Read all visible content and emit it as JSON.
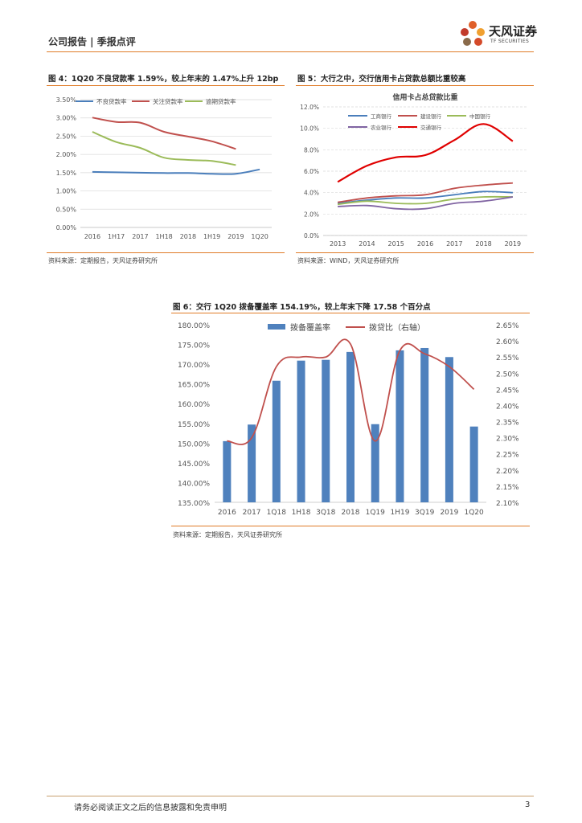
{
  "header": {
    "title": "公司报告 | 季报点评"
  },
  "logo": {
    "cn": "天风证券",
    "en": "TF SECURITIES"
  },
  "figures": {
    "fig4": {
      "title": "图 4：1Q20 不良贷款率 1.59%，较上年末的 1.47%上升 12bp",
      "source": "资料来源：定期报告，天风证券研究所"
    },
    "fig5": {
      "title": "图 5：大行之中，交行信用卡占贷款总额比重较高",
      "source": "资料来源：WIND，天风证券研究所"
    },
    "fig6": {
      "title": "图 6：交行 1Q20 拨备覆盖率 154.19%，较上年末下降 17.58 个百分点",
      "source": "资料来源：定期报告，天风证券研究所"
    }
  },
  "chart_data": [
    {
      "type": "line",
      "categories": [
        "2016",
        "1H17",
        "2017",
        "1H18",
        "2018",
        "1H19",
        "2019",
        "1Q20"
      ],
      "series": [
        {
          "name": "不良贷款率",
          "color": "#4a7ebb",
          "values": [
            1.52,
            1.51,
            1.5,
            1.49,
            1.49,
            1.47,
            1.47,
            1.59
          ]
        },
        {
          "name": "关注贷款率",
          "color": "#c0504d",
          "values": [
            3.01,
            2.89,
            2.87,
            2.62,
            2.49,
            2.36,
            2.15,
            null
          ]
        },
        {
          "name": "逾期贷款率",
          "color": "#9bbb59",
          "values": [
            2.62,
            2.34,
            2.18,
            1.91,
            1.85,
            1.82,
            1.71,
            null
          ]
        }
      ],
      "yticks": [
        "3.50%",
        "3.00%",
        "2.50%",
        "2.00%",
        "1.50%",
        "1.00%",
        "0.50%",
        "0.00%"
      ],
      "ylim": [
        0,
        3.5
      ],
      "legend": "top"
    },
    {
      "type": "line",
      "title": "信用卡占总贷款比重",
      "categories": [
        "2013",
        "2014",
        "2015",
        "2016",
        "2017",
        "2018",
        "2019"
      ],
      "series": [
        {
          "name": "工商银行",
          "color": "#4a7ebb",
          "values": [
            3.0,
            3.3,
            3.5,
            3.5,
            3.8,
            4.1,
            4.0
          ]
        },
        {
          "name": "建设银行",
          "color": "#c0504d",
          "values": [
            3.1,
            3.5,
            3.7,
            3.8,
            4.4,
            4.7,
            4.9
          ]
        },
        {
          "name": "中国银行",
          "color": "#9bbb59",
          "values": [
            2.9,
            3.2,
            3.0,
            3.0,
            3.4,
            3.6,
            3.6
          ]
        },
        {
          "name": "农业银行",
          "color": "#8064a2",
          "values": [
            2.7,
            2.8,
            2.5,
            2.5,
            3.0,
            3.2,
            3.6
          ]
        },
        {
          "name": "交通银行",
          "color": "#e00000",
          "values": [
            5.0,
            6.5,
            7.3,
            7.5,
            8.9,
            10.4,
            8.8
          ]
        }
      ],
      "yticks": [
        "12.0%",
        "10.0%",
        "8.0%",
        "6.0%",
        "4.0%",
        "2.0%",
        "0.0%"
      ],
      "ylim": [
        0,
        12
      ],
      "legend": "top"
    },
    {
      "type": "bar",
      "categories": [
        "2016",
        "2017",
        "1Q18",
        "1H18",
        "3Q18",
        "2018",
        "1Q19",
        "1H19",
        "3Q19",
        "2019",
        "1Q20"
      ],
      "series": [
        {
          "name": "拨备覆盖率",
          "color": "#4f81bd",
          "axis": "left",
          "values": [
            150.5,
            154.7,
            165.8,
            170.9,
            171.1,
            173.1,
            154.8,
            173.5,
            174.1,
            171.8,
            154.2
          ]
        },
        {
          "name": "拨贷比（右轴）",
          "color": "#c0504d",
          "axis": "right",
          "type": "line",
          "values": [
            2.29,
            2.3,
            2.52,
            2.55,
            2.55,
            2.59,
            2.29,
            2.57,
            2.56,
            2.52,
            2.45
          ]
        }
      ],
      "yticks_left": [
        "180.00%",
        "175.00%",
        "170.00%",
        "165.00%",
        "160.00%",
        "155.00%",
        "150.00%",
        "145.00%",
        "140.00%",
        "135.00%"
      ],
      "yticks_right": [
        "2.65%",
        "2.60%",
        "2.55%",
        "2.50%",
        "2.45%",
        "2.40%",
        "2.35%",
        "2.30%",
        "2.25%",
        "2.20%",
        "2.15%",
        "2.10%"
      ],
      "ylim_left": [
        135,
        180
      ],
      "ylim_right": [
        2.1,
        2.65
      ],
      "legend": "top"
    }
  ],
  "footer": {
    "disclaimer": "请务必阅读正文之后的信息披露和免责申明",
    "page": "3"
  }
}
